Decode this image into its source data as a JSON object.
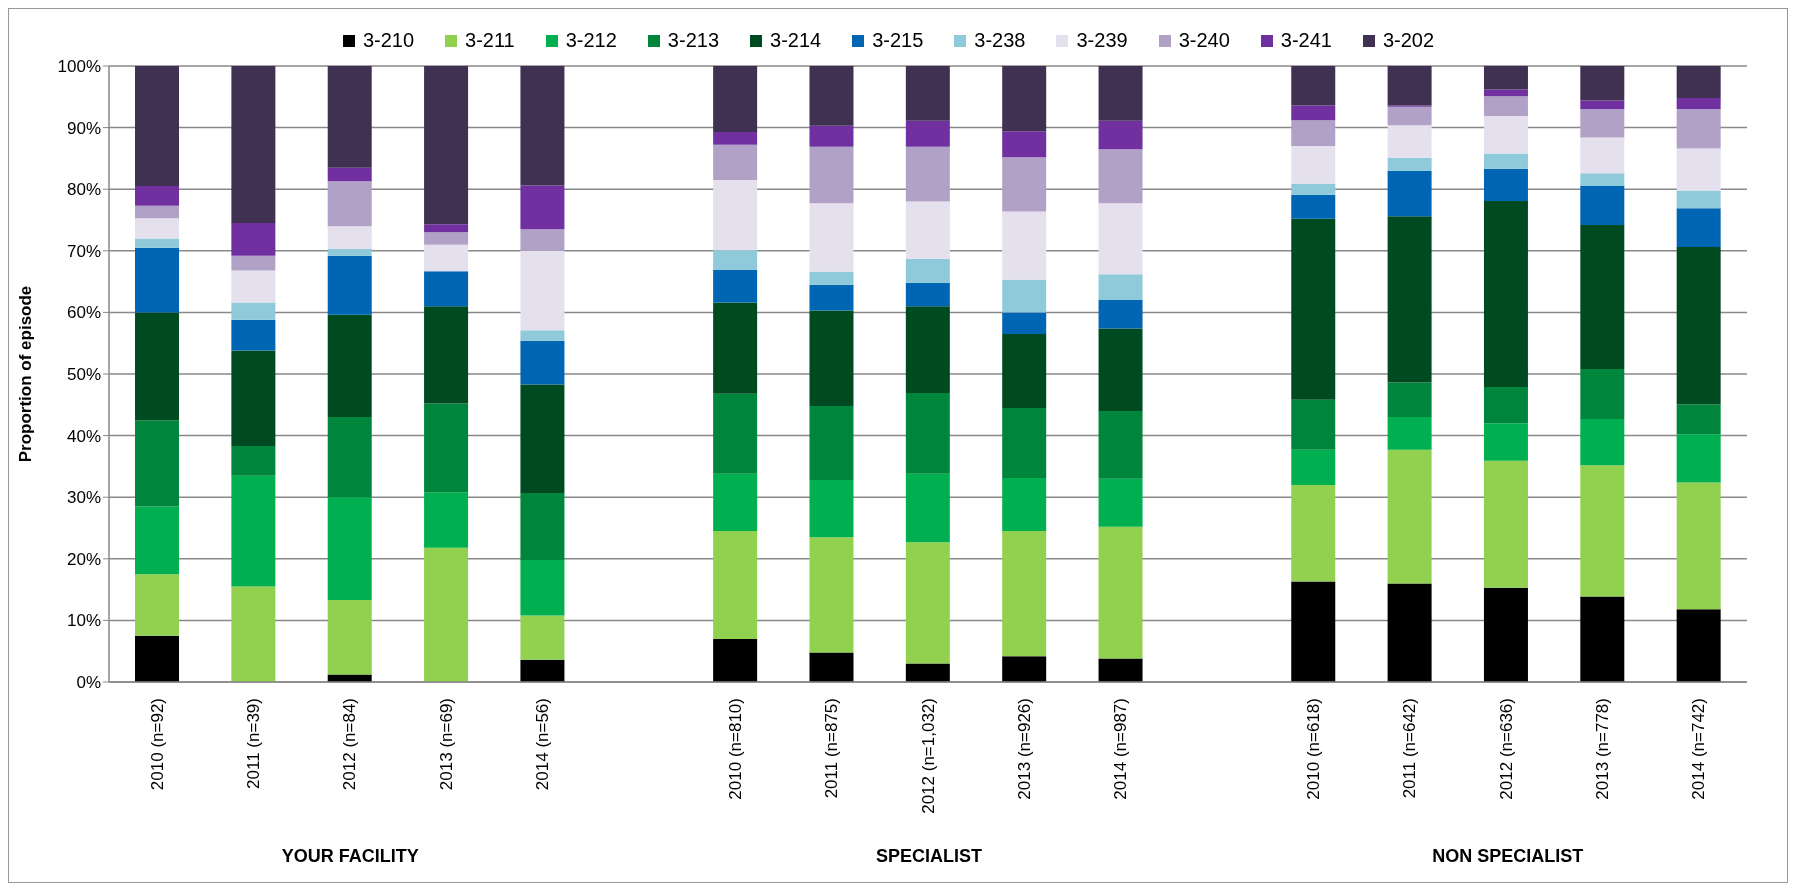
{
  "chart_data": {
    "type": "bar",
    "stacked": true,
    "ylabel": "Proportion of episode",
    "categories": [
      "2010 (n=92)",
      "2011 (n=39)",
      "2012 (n=84)",
      "2013 (n=69)",
      "2014 (n=56)",
      null,
      "2010 (n=810)",
      "2011 (n=875)",
      "2012 (n=1,032)",
      "2013 (n=926)",
      "2014 (n=987)",
      null,
      "2010 (n=618)",
      "2011 (n=642)",
      "2012 (n=636)",
      "2013 (n=778)",
      "2014 (n=742)"
    ],
    "series": [
      {
        "name": "3-210",
        "color": "#000000",
        "values": [
          7.5,
          0,
          1.2,
          0,
          3.6,
          null,
          7,
          4.8,
          3,
          4.2,
          3.8,
          null,
          16.3,
          16,
          15.3,
          13.9,
          11.8
        ]
      },
      {
        "name": "3-211",
        "color": "#92d050",
        "values": [
          10,
          15.5,
          12.1,
          21.8,
          7.2,
          null,
          17.5,
          18.7,
          19.7,
          20.3,
          21.4,
          null,
          15.7,
          21.7,
          20.6,
          21.3,
          20.6
        ]
      },
      {
        "name": "3-212",
        "color": "#00b050",
        "values": [
          11,
          18,
          16.7,
          9,
          9,
          null,
          9.3,
          9.3,
          11.1,
          8.6,
          7.8,
          null,
          5.7,
          5.3,
          6.1,
          7.5,
          7.8
        ]
      },
      {
        "name": "3-213",
        "color": "#00863c",
        "values": [
          14,
          4.8,
          13,
          14.4,
          10.9,
          null,
          13,
          12,
          13.1,
          11.4,
          11,
          null,
          8.1,
          5.6,
          5.9,
          8.1,
          4.9
        ]
      },
      {
        "name": "3-214",
        "color": "#004a22",
        "values": [
          17.5,
          15.5,
          16.6,
          15.8,
          17.6,
          null,
          14.8,
          15.5,
          14.1,
          12,
          13.4,
          null,
          29.4,
          27,
          30.2,
          23.4,
          25.5
        ]
      },
      {
        "name": "3-215",
        "color": "#0066b3",
        "values": [
          10.5,
          5,
          9.6,
          5.7,
          7.1,
          null,
          5.3,
          4.2,
          3.8,
          3.5,
          4.6,
          null,
          3.9,
          7.4,
          5.2,
          6.3,
          6.3
        ]
      },
      {
        "name": "3-238",
        "color": "#8ecad9",
        "values": [
          1.5,
          2.8,
          1.1,
          0,
          1.7,
          null,
          3.2,
          2.1,
          3.9,
          5.3,
          4.2,
          null,
          1.8,
          2.1,
          2.5,
          2.1,
          2.9
        ]
      },
      {
        "name": "3-239",
        "color": "#e5e0ee",
        "values": [
          3.3,
          5.2,
          3.7,
          4.3,
          12.9,
          null,
          11.4,
          11.1,
          9.3,
          11.1,
          11.5,
          null,
          6.1,
          5.3,
          6.1,
          5.8,
          6.8
        ]
      },
      {
        "name": "3-240",
        "color": "#b2a1c7",
        "values": [
          2,
          2.4,
          7.3,
          2,
          3.5,
          null,
          5.7,
          9.2,
          8.9,
          8.8,
          8.8,
          null,
          4.2,
          3,
          3.2,
          4.6,
          6.4
        ]
      },
      {
        "name": "3-241",
        "color": "#7030a0",
        "values": [
          3.2,
          5.3,
          2.2,
          1.3,
          7.1,
          null,
          2.1,
          3.4,
          4.2,
          4.2,
          4.6,
          null,
          2.4,
          0.2,
          1.1,
          1.4,
          1.8
        ]
      },
      {
        "name": "3-202",
        "color": "#403152",
        "values": [
          19.5,
          25.5,
          16.5,
          25.7,
          19.4,
          null,
          10.7,
          9.7,
          8.9,
          10.6,
          8.9,
          null,
          6.4,
          6.4,
          3.8,
          5.6,
          5.2
        ]
      }
    ],
    "ylim": [
      0,
      100
    ],
    "yticks": [
      {
        "value": 0,
        "label": "0%"
      },
      {
        "value": 10,
        "label": "10%"
      },
      {
        "value": 20,
        "label": "20%"
      },
      {
        "value": 30,
        "label": "30%"
      },
      {
        "value": 40,
        "label": "40%"
      },
      {
        "value": 50,
        "label": "50%"
      },
      {
        "value": 60,
        "label": "60%"
      },
      {
        "value": 70,
        "label": "70%"
      },
      {
        "value": 80,
        "label": "80%"
      },
      {
        "value": 90,
        "label": "90%"
      },
      {
        "value": 100,
        "label": "100%"
      }
    ],
    "grid": "y",
    "legend": "top",
    "marker": "square",
    "annotations": [
      "YOUR FACILITY",
      "SPECIALIST",
      "NON SPECIALIST"
    ]
  }
}
